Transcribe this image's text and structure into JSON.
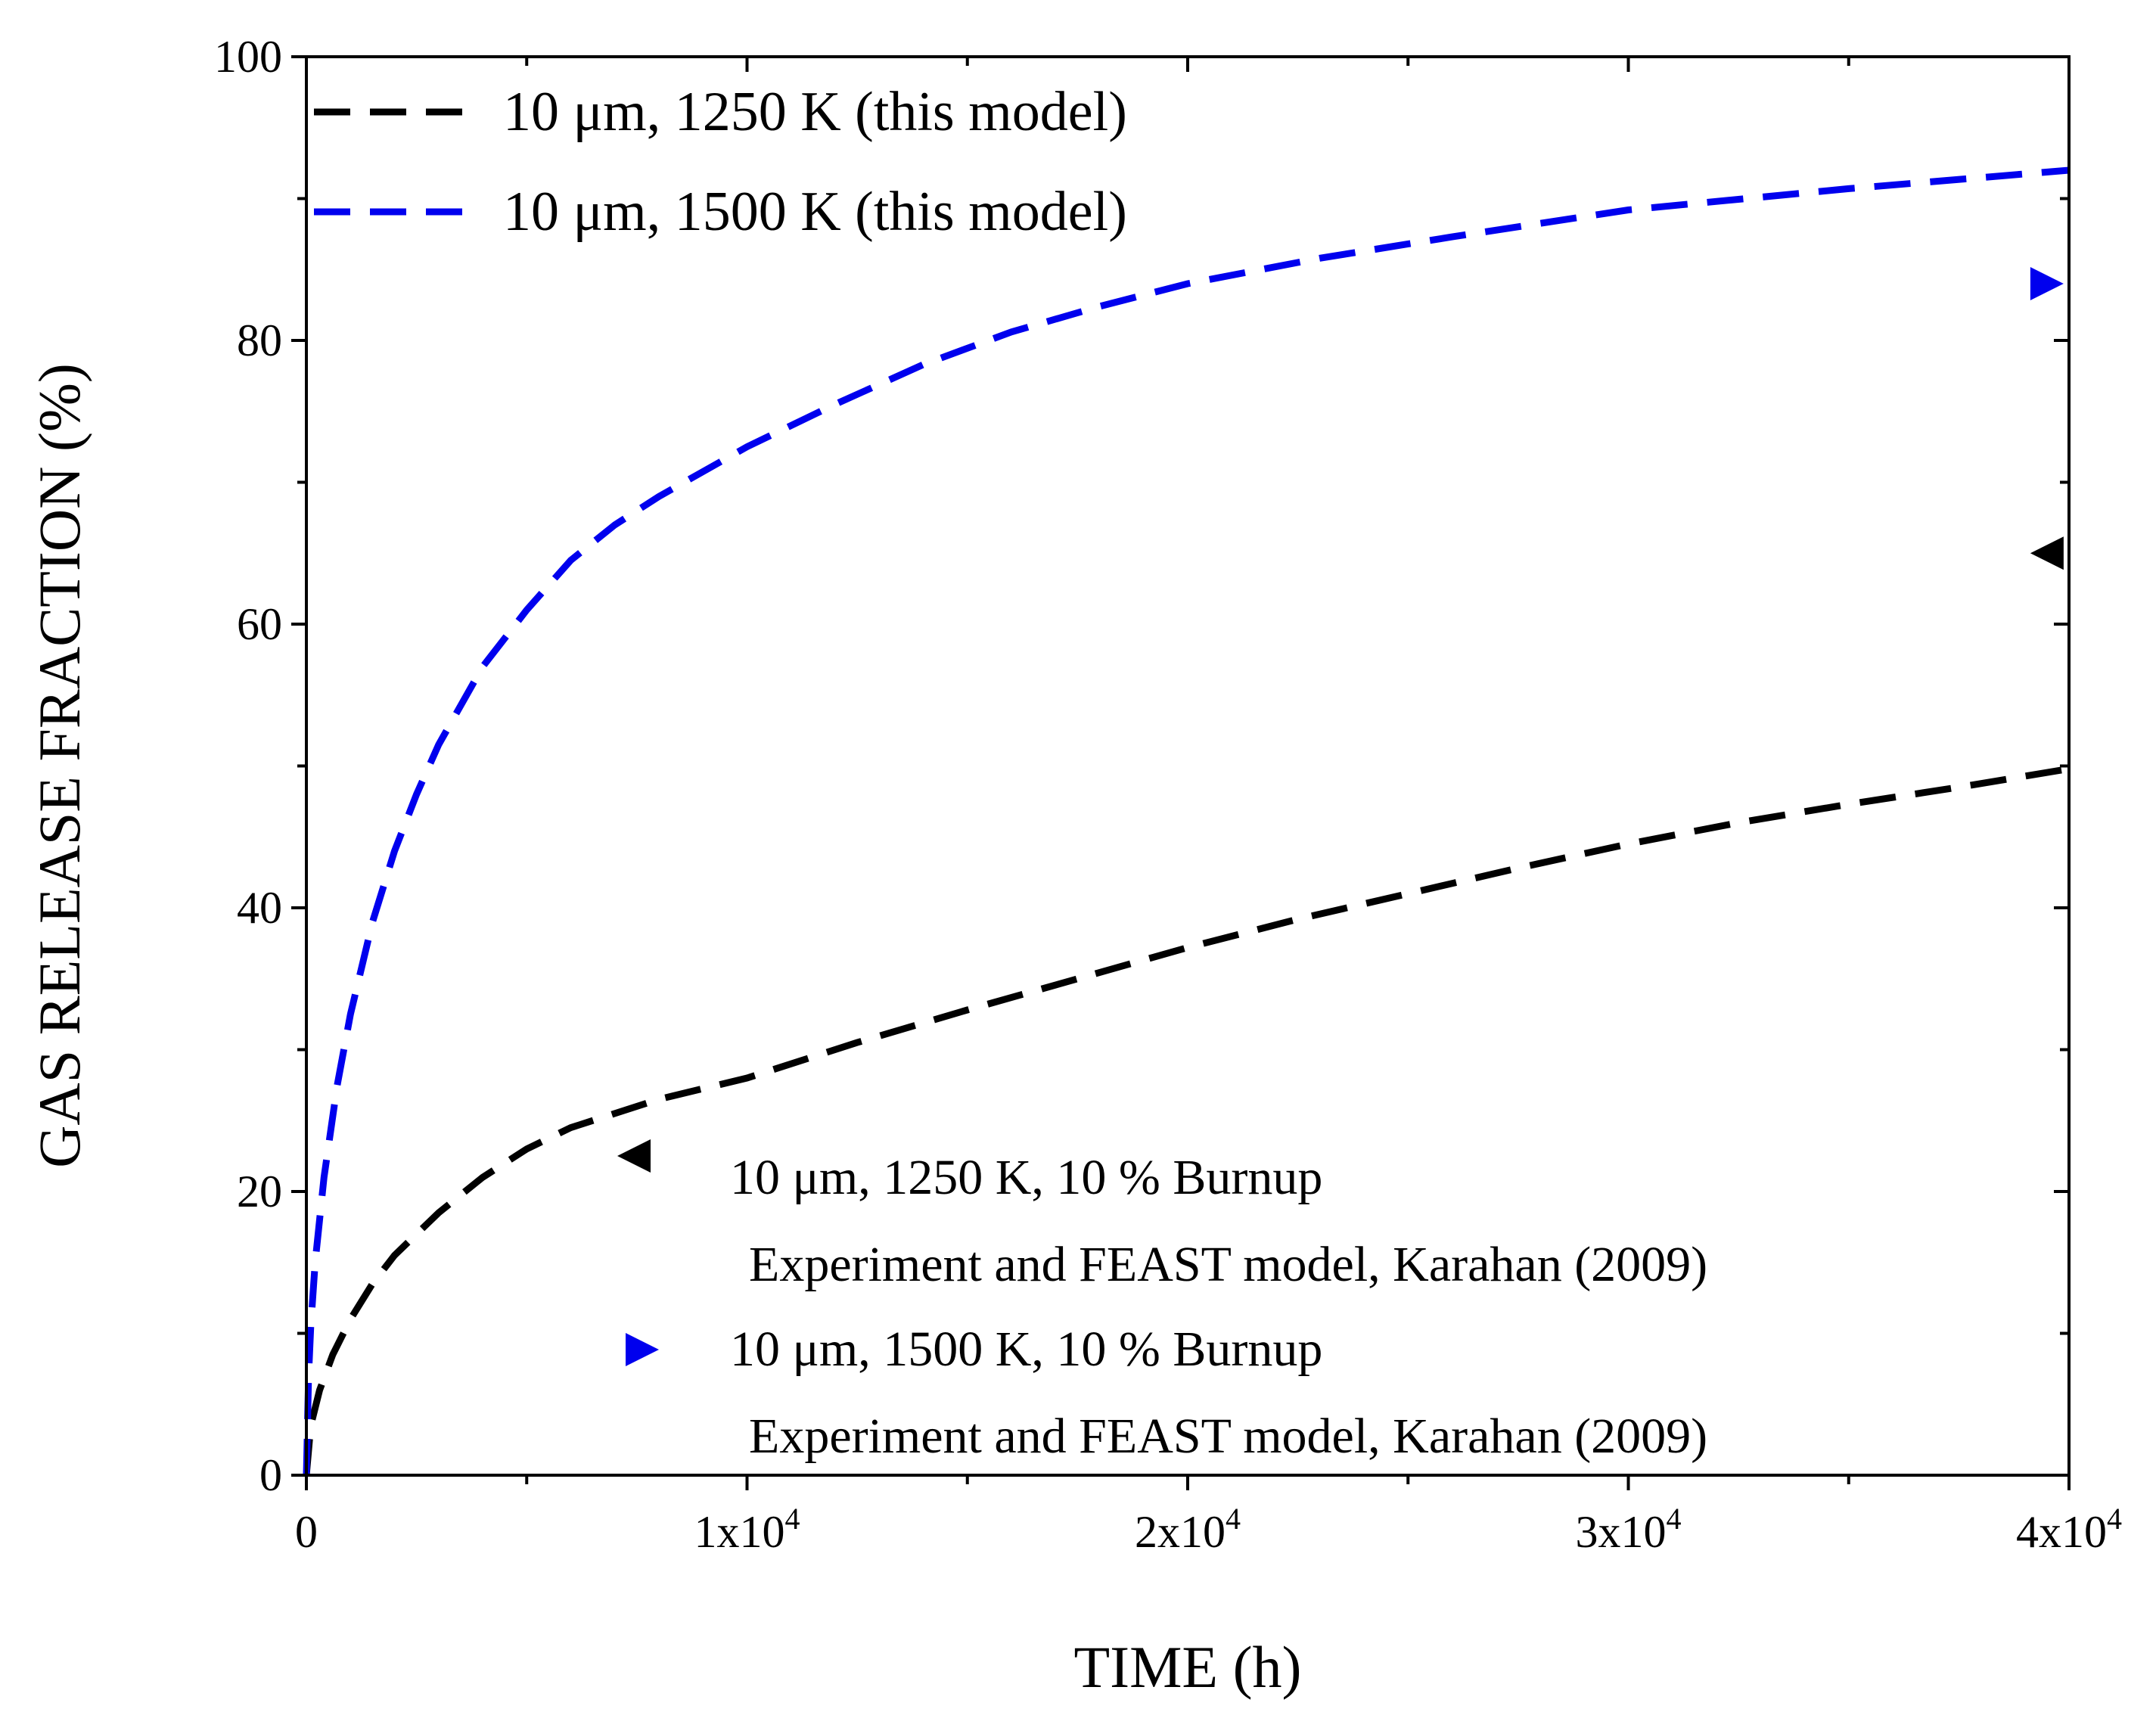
{
  "chart_data": {
    "type": "line",
    "xlabel": "TIME (h)",
    "ylabel": "GAS RELEASE FRACTION (%)",
    "xlim": [
      0,
      40000
    ],
    "ylim": [
      0,
      100
    ],
    "grid": false,
    "x_ticks": [
      {
        "value": 0,
        "base": "0",
        "exp": ""
      },
      {
        "value": 10000,
        "base": "1x10",
        "exp": "4"
      },
      {
        "value": 20000,
        "base": "2x10",
        "exp": "4"
      },
      {
        "value": 30000,
        "base": "3x10",
        "exp": "4"
      },
      {
        "value": 40000,
        "base": "4x10",
        "exp": "4"
      }
    ],
    "x_minor_ticks": [
      5000,
      15000,
      25000,
      35000
    ],
    "y_ticks": [
      0,
      20,
      40,
      60,
      80,
      100
    ],
    "y_minor_ticks": [
      10,
      30,
      50,
      70,
      90
    ],
    "series": [
      {
        "name": "10 μm, 1250 K (this model)",
        "style": "dashed",
        "color": "#000000",
        "x": [
          0,
          100,
          300,
          600,
          1000,
          1500,
          2000,
          3000,
          4000,
          5000,
          6000,
          8000,
          10000,
          12500,
          15000,
          17500,
          20000,
          22500,
          25000,
          27500,
          30000,
          32500,
          35000,
          37500,
          40000
        ],
        "y": [
          0,
          3.5,
          6.0,
          8.5,
          11.0,
          13.5,
          15.5,
          18.5,
          21.0,
          23.0,
          24.5,
          26.5,
          28.0,
          30.5,
          32.8,
          35.0,
          37.2,
          39.2,
          41.0,
          42.8,
          44.5,
          46.0,
          47.3,
          48.5,
          49.8
        ]
      },
      {
        "name": "10 μm, 1500 K (this model)",
        "style": "dashed",
        "color": "#0000ee",
        "x": [
          0,
          50,
          100,
          200,
          400,
          700,
          1000,
          1500,
          2000,
          2500,
          3000,
          4000,
          5000,
          6000,
          7000,
          8000,
          10000,
          12000,
          14000,
          16000,
          18000,
          20000,
          23000,
          26000,
          30000,
          35000,
          40000
        ],
        "y": [
          0,
          7.0,
          10.5,
          15.0,
          21.0,
          27.5,
          32.5,
          39.0,
          44.0,
          48.0,
          51.5,
          57.0,
          61.0,
          64.5,
          67.0,
          69.0,
          72.5,
          75.5,
          78.3,
          80.6,
          82.4,
          84.0,
          85.8,
          87.3,
          89.2,
          90.7,
          92.0
        ]
      }
    ],
    "experimental_points": [
      {
        "marker": "left-triangle",
        "color": "#000000",
        "x": 39500,
        "y": 65,
        "legend_line1": "10 μm, 1250 K, 10 % Burnup",
        "legend_line2": "Experiment and FEAST model, Karahan (2009)"
      },
      {
        "marker": "right-triangle",
        "color": "#0000ee",
        "x": 39500,
        "y": 84,
        "legend_line1": "10 μm, 1500 K, 10 % Burnup",
        "legend_line2": "Experiment and FEAST model, Karahan (2009)"
      }
    ],
    "legend_top": "top-left",
    "legend_bottom": "bottom-right"
  }
}
